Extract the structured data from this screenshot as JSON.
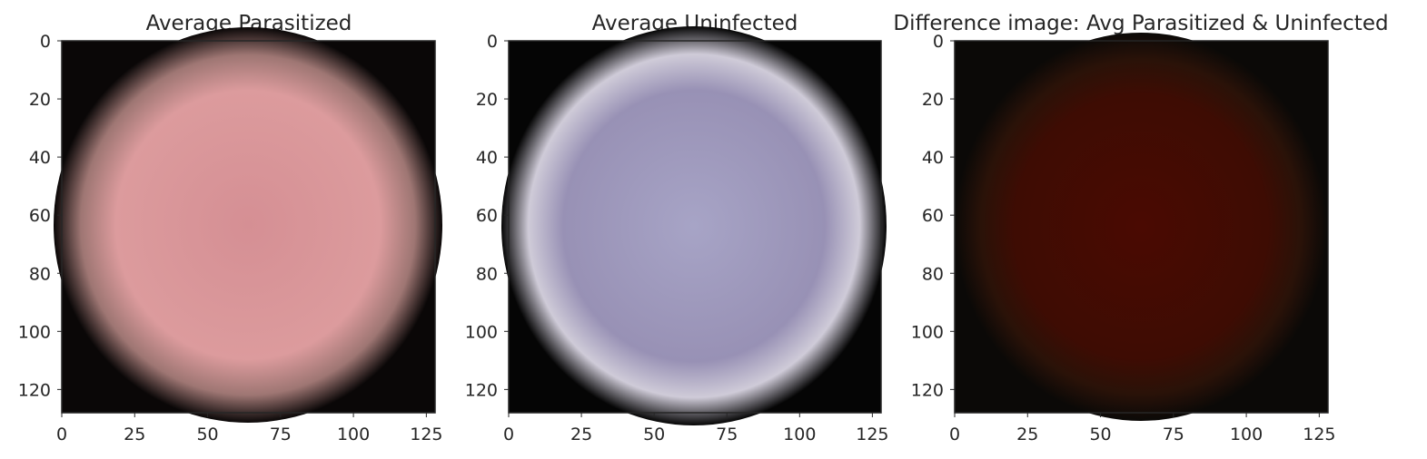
{
  "chart_data": [
    {
      "type": "heatmap",
      "title": "Average Parasitized",
      "xlabel": "",
      "ylabel": "",
      "xlim": [
        0,
        128
      ],
      "ylim": [
        128,
        0
      ],
      "xticks": [
        0,
        25,
        50,
        75,
        100,
        125
      ],
      "yticks": [
        0,
        20,
        40,
        60,
        80,
        100,
        120
      ],
      "grid": false,
      "colors": {
        "center": "#d58f94",
        "mid": "#dc9b9d",
        "edge": "#9e7673",
        "background": "#0a0707"
      }
    },
    {
      "type": "heatmap",
      "title": "Average Uninfected",
      "xlabel": "",
      "ylabel": "",
      "xlim": [
        0,
        128
      ],
      "ylim": [
        128,
        0
      ],
      "xticks": [
        0,
        25,
        50,
        75,
        100,
        125
      ],
      "yticks": [
        0,
        20,
        40,
        60,
        80,
        100,
        120
      ],
      "grid": false,
      "colors": {
        "center": "#a7a4c6",
        "mid": "#9891b5",
        "edge": "#cfcbd8",
        "background": "#050505"
      }
    },
    {
      "type": "heatmap",
      "title": "Difference image: Avg Parasitized & Uninfected",
      "xlabel": "",
      "ylabel": "",
      "xlim": [
        0,
        128
      ],
      "ylim": [
        128,
        0
      ],
      "xticks": [
        0,
        25,
        50,
        75,
        100,
        125
      ],
      "yticks": [
        0,
        20,
        40,
        60,
        80,
        100,
        120
      ],
      "grid": false,
      "colors": {
        "center": "#4a0a02",
        "mid": "#3e0c03",
        "edge": "#2a1208",
        "background": "#0b0907"
      }
    }
  ]
}
